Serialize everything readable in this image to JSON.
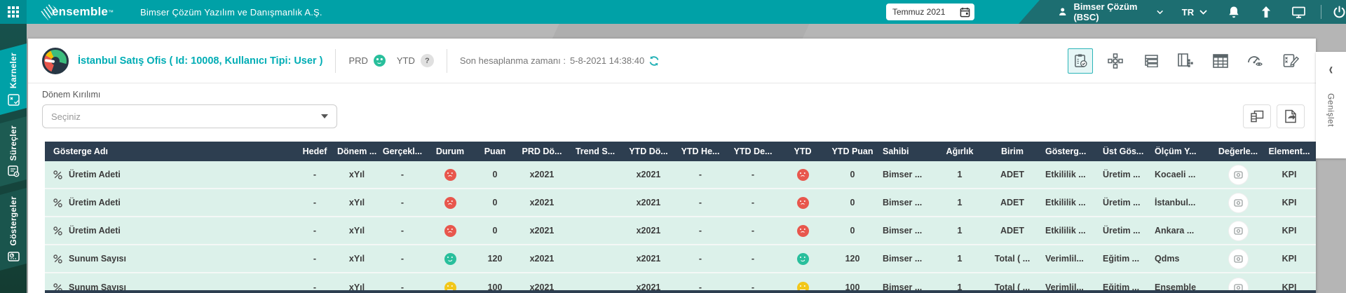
{
  "topbar": {
    "logo_text": "ensemble",
    "logo_tm": "™",
    "company_name": "Bimser Çözüm Yazılım ve Danışmanlık A.Ş.",
    "date_picker_value": "Temmuz 2021",
    "user_name": "Bimser Çözüm (BSC)",
    "language": "TR"
  },
  "sidebar": {
    "tabs": [
      {
        "label": "Karneler",
        "active": true
      },
      {
        "label": "Süreçler",
        "active": false
      },
      {
        "label": "Göstergeler",
        "active": false
      }
    ]
  },
  "content_header": {
    "title": "İstanbul Satış Ofis ( Id: 10008, Kullanıcı Tipi: User )",
    "prd_label": "PRD",
    "prd_status": "happy",
    "ytd_label": "YTD",
    "ytd_help_glyph": "?",
    "last_calc_label": "Son hesaplanma zamanı :",
    "last_calc_value": "5-8-2021 14:38:40"
  },
  "filter": {
    "label": "Dönem Kırılımı",
    "placeholder": "Seçiniz"
  },
  "expand_panel": {
    "chevron": "‹",
    "label": "Genişlet"
  },
  "table": {
    "columns": [
      "Gösterge Adı",
      "Hedef",
      "Dönem ...",
      "Gerçekl...",
      "Durum",
      "Puan",
      "PRD Dö...",
      "Trend S...",
      "YTD Dö...",
      "YTD He...",
      "YTD De...",
      "YTD",
      "YTD Puan",
      "Sahibi",
      "Ağırlık",
      "Birim",
      "Gösterg...",
      "Üst Gös...",
      "Ölçüm Y...",
      "Değerle...",
      "Element..."
    ],
    "rows": [
      {
        "name": "Üretim Adeti",
        "hedef": "-",
        "donem": "xYıl",
        "gercek": "-",
        "durum": "sad",
        "puan": "0",
        "prd": "x2021",
        "trend": "",
        "ytd_donem": "x2021",
        "ytd_hedef": "-",
        "ytd_gercek": "-",
        "ytd": "sad",
        "ytd_puan": "0",
        "sahibi": "Bimser ...",
        "agirlik": "1",
        "birim": "ADET",
        "gosterge": "Etkililik ...",
        "ust_gosterge": "Üretim ...",
        "olcum": "Kocaeli ...",
        "element": "KPI"
      },
      {
        "name": "Üretim Adeti",
        "hedef": "-",
        "donem": "xYıl",
        "gercek": "-",
        "durum": "sad",
        "puan": "0",
        "prd": "x2021",
        "trend": "",
        "ytd_donem": "x2021",
        "ytd_hedef": "-",
        "ytd_gercek": "-",
        "ytd": "sad",
        "ytd_puan": "0",
        "sahibi": "Bimser ...",
        "agirlik": "1",
        "birim": "ADET",
        "gosterge": "Etkililik ...",
        "ust_gosterge": "Üretim ...",
        "olcum": "İstanbul...",
        "element": "KPI"
      },
      {
        "name": "Üretim Adeti",
        "hedef": "-",
        "donem": "xYıl",
        "gercek": "-",
        "durum": "sad",
        "puan": "0",
        "prd": "x2021",
        "trend": "",
        "ytd_donem": "x2021",
        "ytd_hedef": "-",
        "ytd_gercek": "-",
        "ytd": "sad",
        "ytd_puan": "0",
        "sahibi": "Bimser ...",
        "agirlik": "1",
        "birim": "ADET",
        "gosterge": "Etkililik ...",
        "ust_gosterge": "Üretim ...",
        "olcum": "Ankara ...",
        "element": "KPI"
      },
      {
        "name": "Sunum Sayısı",
        "hedef": "-",
        "donem": "xYıl",
        "gercek": "-",
        "durum": "happy",
        "puan": "120",
        "prd": "x2021",
        "trend": "",
        "ytd_donem": "x2021",
        "ytd_hedef": "-",
        "ytd_gercek": "-",
        "ytd": "happy",
        "ytd_puan": "120",
        "sahibi": "Bimser ...",
        "agirlik": "1",
        "birim": "Total ( ...",
        "gosterge": "Verimlil...",
        "ust_gosterge": "Eğitim ...",
        "olcum": "Qdms",
        "element": "KPI"
      },
      {
        "name": "Sunum Sayısı",
        "hedef": "-",
        "donem": "xYıl",
        "gercek": "-",
        "durum": "neutral",
        "puan": "100",
        "prd": "x2021",
        "trend": "",
        "ytd_donem": "x2021",
        "ytd_hedef": "-",
        "ytd_gercek": "-",
        "ytd": "neutral",
        "ytd_puan": "100",
        "sahibi": "Bimser ...",
        "agirlik": "1",
        "birim": "Total ( ...",
        "gosterge": "Verimlil...",
        "ust_gosterge": "Eğitim ...",
        "olcum": "Ensemble",
        "element": "KPI"
      }
    ]
  },
  "colors": {
    "accent_teal": "#00a1a7",
    "topbar_dark": "#1d6e71",
    "title_teal": "#00adb5",
    "table_header_bg": "#2d3e50",
    "row_bg": "#dcf1ea",
    "status": {
      "happy": "#29bf9c",
      "sad": "#e8574d",
      "neutral": "#f2c71b"
    }
  }
}
